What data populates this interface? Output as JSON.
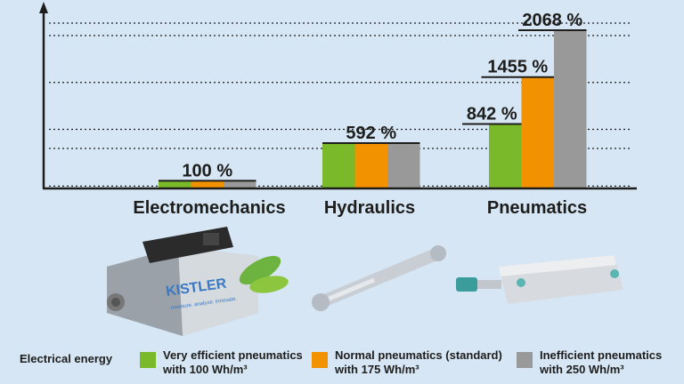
{
  "chart_data": {
    "type": "bar",
    "categories": [
      "Electromechanics",
      "Hydraulics",
      "Pneumatics"
    ],
    "series": [
      {
        "name": "Very efficient pneumatics with 100 Wh/m³",
        "color": "#7ab929",
        "values": [
          100,
          592,
          842
        ]
      },
      {
        "name": "Normal pneumatics (standard) with 175 Wh/m³",
        "color": "#f39200",
        "values": [
          100,
          592,
          1455
        ]
      },
      {
        "name": "Inefficient pneumatics with 250 Wh/m³",
        "color": "#999999",
        "values": [
          100,
          592,
          2068
        ]
      }
    ],
    "labels": [
      {
        "category": "Electromechanics",
        "text": "100 %",
        "value": 100
      },
      {
        "category": "Hydraulics",
        "text": "592 %",
        "value": 592
      },
      {
        "category": "Pneumatics",
        "text": "842 %",
        "value": 842,
        "series": 0
      },
      {
        "category": "Pneumatics",
        "text": "1455 %",
        "value": 1455,
        "series": 1
      },
      {
        "category": "Pneumatics",
        "text": "2068 %",
        "value": 2068,
        "series": 2
      }
    ],
    "title": "",
    "xlabel": "",
    "ylabel": "",
    "ylim": [
      0,
      2300
    ],
    "grid": true,
    "legend_position": "bottom"
  },
  "legend": {
    "title": "Electrical energy",
    "items": [
      {
        "line1": "Very efficient pneumatics",
        "line2": "with 100 Wh/m³",
        "color": "#7ab929"
      },
      {
        "line1": "Normal pneumatics (standard)",
        "line2": "with 175 Wh/m³",
        "color": "#f39200"
      },
      {
        "line1": "Inefficient pneumatics",
        "line2": "with 250 Wh/m³",
        "color": "#999999"
      }
    ]
  },
  "products": {
    "kistler_logo": "KISTLER",
    "kistler_tagline": "measure. analyze. innovate."
  }
}
